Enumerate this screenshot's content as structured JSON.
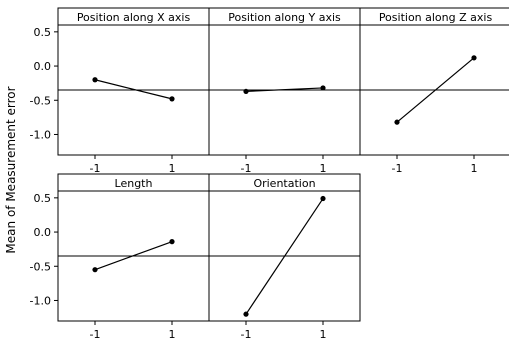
{
  "chart_data": {
    "type": "line",
    "title": "",
    "ylabel": "Mean of Measurement error",
    "ylim": [
      -1.3,
      0.6
    ],
    "yticks": [
      0.5,
      0.0,
      -0.5,
      -1.0
    ],
    "ytick_labels": [
      "0.5",
      "0.0",
      "-0.5",
      "-1.0"
    ],
    "x": [
      -1,
      1
    ],
    "xtick_labels": [
      "-1",
      "1"
    ],
    "reference_line": -0.35,
    "grid": false,
    "panels": [
      {
        "name": "Position along X axis",
        "values": [
          -0.2,
          -0.48
        ]
      },
      {
        "name": "Position along Y axis",
        "values": [
          -0.37,
          -0.32
        ]
      },
      {
        "name": "Position along Z axis",
        "values": [
          -0.82,
          0.12
        ]
      },
      {
        "name": "Length",
        "values": [
          -0.55,
          -0.14
        ]
      },
      {
        "name": "Orientation",
        "values": [
          -1.2,
          0.49
        ]
      }
    ]
  }
}
